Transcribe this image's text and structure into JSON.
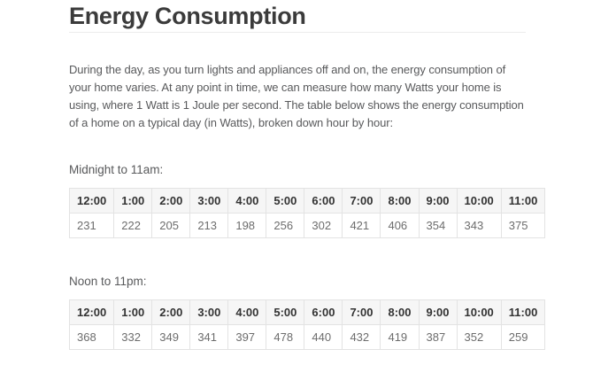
{
  "page": {
    "title": "Energy Consumption",
    "intro": "During the day, as you turn lights and appliances off and on, the energy consumption of your home varies. At any point in time, we can measure how many Watts your home is using, where 1 Watt is 1 Joule per second. The table below shows the energy consumption of a home on a typical day (in Watts), broken down hour by hour:"
  },
  "colors": {
    "title_text": "#3b3b3b",
    "body_text": "#58595b",
    "divider": "#ececec",
    "table_border": "#e3e3e3",
    "header_bg": "#f6f6f6",
    "header_text": "#333333",
    "cell_text": "#6d6d6d",
    "page_bg": "#ffffff"
  },
  "tables": [
    {
      "label": "Midnight to 11am:",
      "headers": [
        "12:00",
        "1:00",
        "2:00",
        "3:00",
        "4:00",
        "5:00",
        "6:00",
        "7:00",
        "8:00",
        "9:00",
        "10:00",
        "11:00"
      ],
      "values": [
        231,
        222,
        205,
        213,
        198,
        256,
        302,
        421,
        406,
        354,
        343,
        375
      ]
    },
    {
      "label": "Noon to 11pm:",
      "headers": [
        "12:00",
        "1:00",
        "2:00",
        "3:00",
        "4:00",
        "5:00",
        "6:00",
        "7:00",
        "8:00",
        "9:00",
        "10:00",
        "11:00"
      ],
      "values": [
        368,
        332,
        349,
        341,
        397,
        478,
        440,
        432,
        419,
        387,
        352,
        259
      ]
    }
  ]
}
